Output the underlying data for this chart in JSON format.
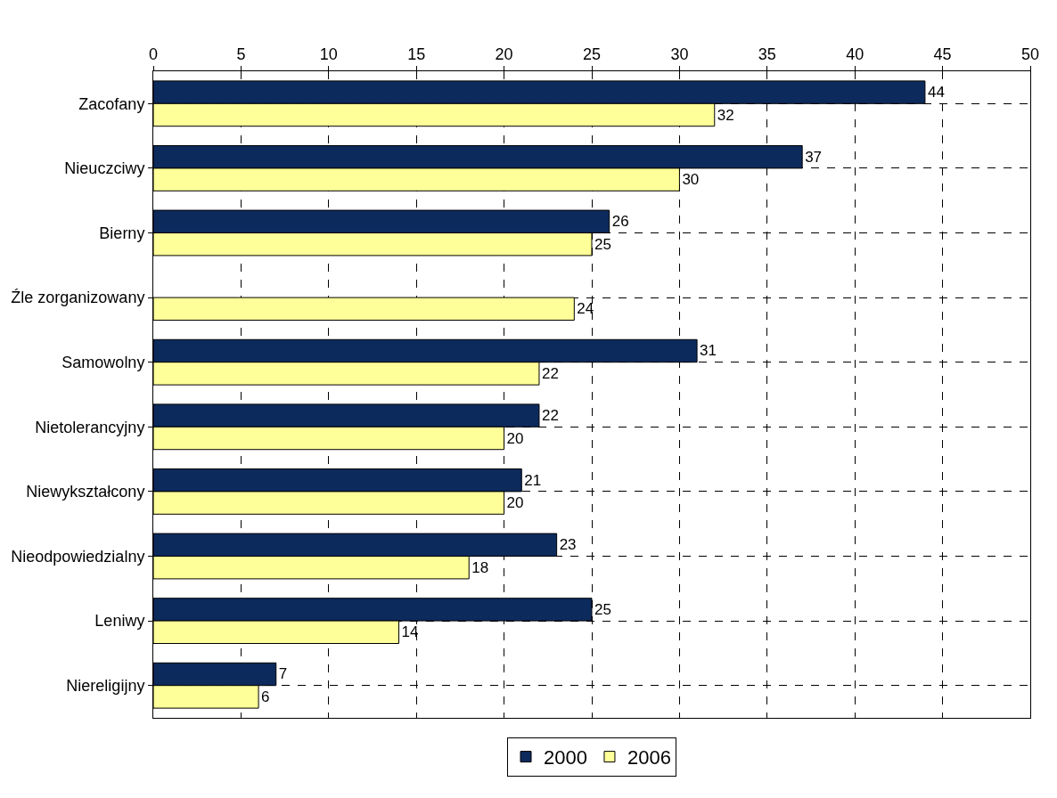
{
  "chart_data": {
    "type": "bar",
    "orientation": "horizontal",
    "categories": [
      "Zacofany",
      "Nieuczciwy",
      "Bierny",
      "Źle zorganizowany",
      "Samowolny",
      "Nietolerancyjny",
      "Niewykształcony",
      "Nieodpowiedzialny",
      "Leniwy",
      "Niereligijny"
    ],
    "series": [
      {
        "name": "2000",
        "color": "#0c2a5c",
        "values": [
          44,
          37,
          26,
          null,
          31,
          22,
          21,
          23,
          25,
          7
        ]
      },
      {
        "name": "2006",
        "color": "#ffff99",
        "values": [
          32,
          30,
          25,
          24,
          22,
          20,
          20,
          18,
          14,
          6
        ]
      }
    ],
    "xlim": [
      0,
      50
    ],
    "xticks": [
      0,
      5,
      10,
      15,
      20,
      25,
      30,
      35,
      40,
      45,
      50
    ],
    "grid": true,
    "legend": "bottom",
    "data_labels": true
  }
}
